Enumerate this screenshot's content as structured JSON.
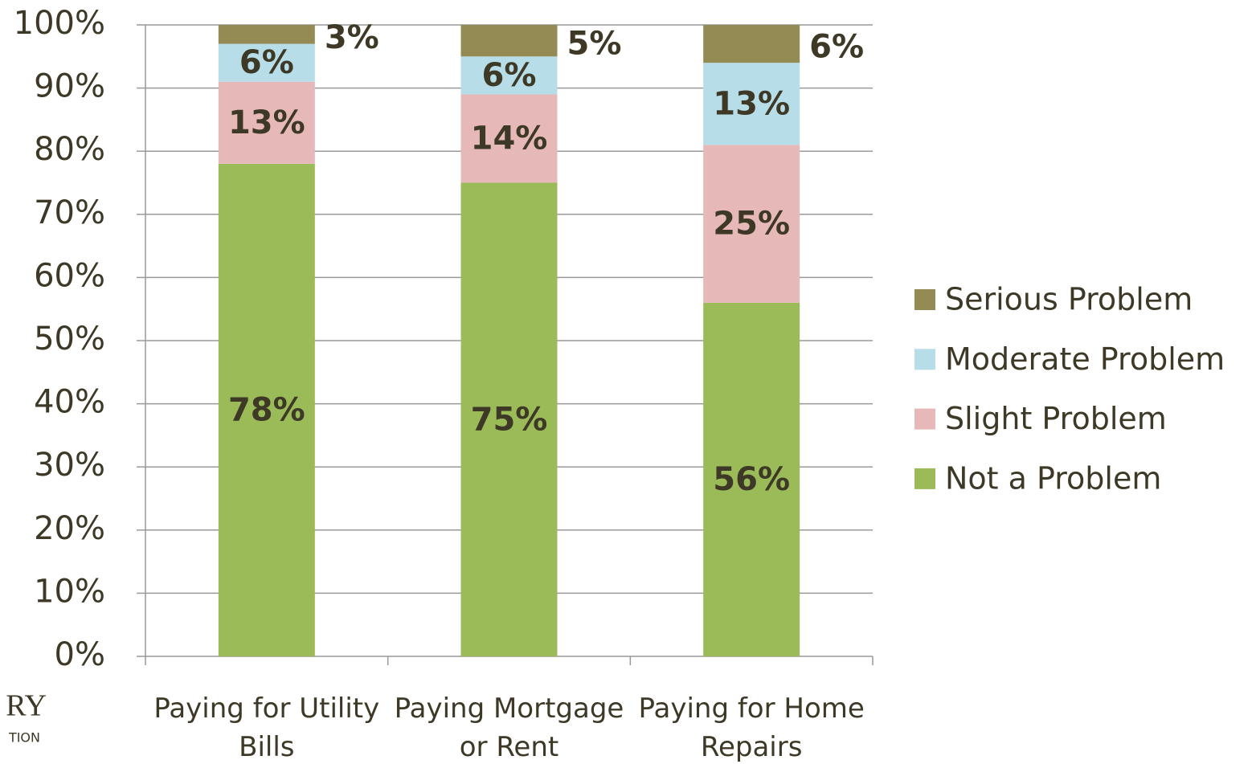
{
  "chart_data": {
    "type": "stacked_bar",
    "categories": [
      "Paying for Utility Bills",
      "Paying Mortgage or Rent",
      "Paying for Home Repairs"
    ],
    "series": [
      {
        "name": "Not a Problem",
        "color": "#9bbb59",
        "values": [
          78,
          75,
          56
        ],
        "value_labels": [
          "78%",
          "75%",
          "56%"
        ]
      },
      {
        "name": "Slight Problem",
        "color": "#e6b9b8",
        "values": [
          13,
          14,
          25
        ],
        "value_labels": [
          "13%",
          "14%",
          "25%"
        ]
      },
      {
        "name": "Moderate Problem",
        "color": "#b7dde8",
        "values": [
          6,
          6,
          13
        ],
        "value_labels": [
          "6%",
          "6%",
          "13%"
        ]
      },
      {
        "name": "Serious Problem",
        "color": "#948a54",
        "values": [
          3,
          5,
          6
        ],
        "value_labels": [
          "3%",
          "5%",
          "6%"
        ]
      }
    ],
    "ylim": [
      0,
      100
    ],
    "yticks": [
      {
        "value": 0,
        "label": "0%"
      },
      {
        "value": 10,
        "label": "10%"
      },
      {
        "value": 20,
        "label": "20%"
      },
      {
        "value": 30,
        "label": "30%"
      },
      {
        "value": 40,
        "label": "40%"
      },
      {
        "value": 50,
        "label": "50%"
      },
      {
        "value": 60,
        "label": "60%"
      },
      {
        "value": 70,
        "label": "70%"
      },
      {
        "value": 80,
        "label": "80%"
      },
      {
        "value": 90,
        "label": "90%"
      },
      {
        "value": 100,
        "label": "100%"
      }
    ],
    "grid": true,
    "legend": "right",
    "logo": [
      "RY",
      "TION"
    ]
  }
}
